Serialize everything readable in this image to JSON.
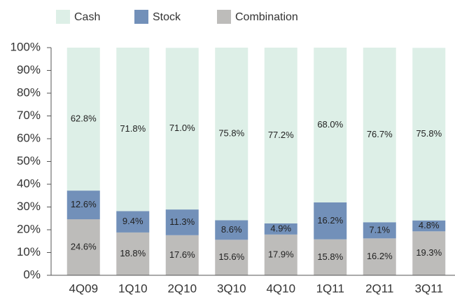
{
  "chart_data": {
    "type": "stacked_bar",
    "categories": [
      "4Q09",
      "1Q10",
      "2Q10",
      "3Q10",
      "4Q10",
      "1Q11",
      "2Q11",
      "3Q11"
    ],
    "series": [
      {
        "name": "Combination",
        "color": "#bdbcba",
        "values": [
          24.6,
          18.8,
          17.6,
          15.6,
          17.9,
          15.8,
          16.2,
          19.3
        ],
        "value_labels": [
          "24.6%",
          "18.8%",
          "17.6%",
          "15.6%",
          "17.9%",
          "15.8%",
          "16.2%",
          "19.3%"
        ]
      },
      {
        "name": "Stock",
        "color": "#7290b9",
        "values": [
          12.6,
          9.4,
          11.3,
          8.6,
          4.9,
          16.2,
          7.1,
          4.8
        ],
        "value_labels": [
          "12.6%",
          "9.4%",
          "11.3%",
          "8.6%",
          "4.9%",
          "16.2%",
          "7.1%",
          "4.8%"
        ]
      },
      {
        "name": "Cash",
        "color": "#ddefe7",
        "values": [
          62.8,
          71.8,
          71.0,
          75.8,
          77.2,
          68.0,
          76.7,
          75.8
        ],
        "value_labels": [
          "62.8%",
          "71.8%",
          "71.0%",
          "75.8%",
          "77.2%",
          "68.0%",
          "76.7%",
          "75.8%"
        ]
      }
    ],
    "legend_order": [
      "Cash",
      "Stock",
      "Combination"
    ],
    "ylim": [
      0,
      100
    ],
    "yticks": [
      {
        "value": 0,
        "label": "0%"
      },
      {
        "value": 10,
        "label": "10%"
      },
      {
        "value": 20,
        "label": "20%"
      },
      {
        "value": 30,
        "label": "30%"
      },
      {
        "value": 40,
        "label": "40%"
      },
      {
        "value": 50,
        "label": "50%"
      },
      {
        "value": 60,
        "label": "60%"
      },
      {
        "value": 70,
        "label": "70%"
      },
      {
        "value": 80,
        "label": "80%"
      },
      {
        "value": 90,
        "label": "90%"
      },
      {
        "value": 100,
        "label": "100%"
      }
    ]
  }
}
